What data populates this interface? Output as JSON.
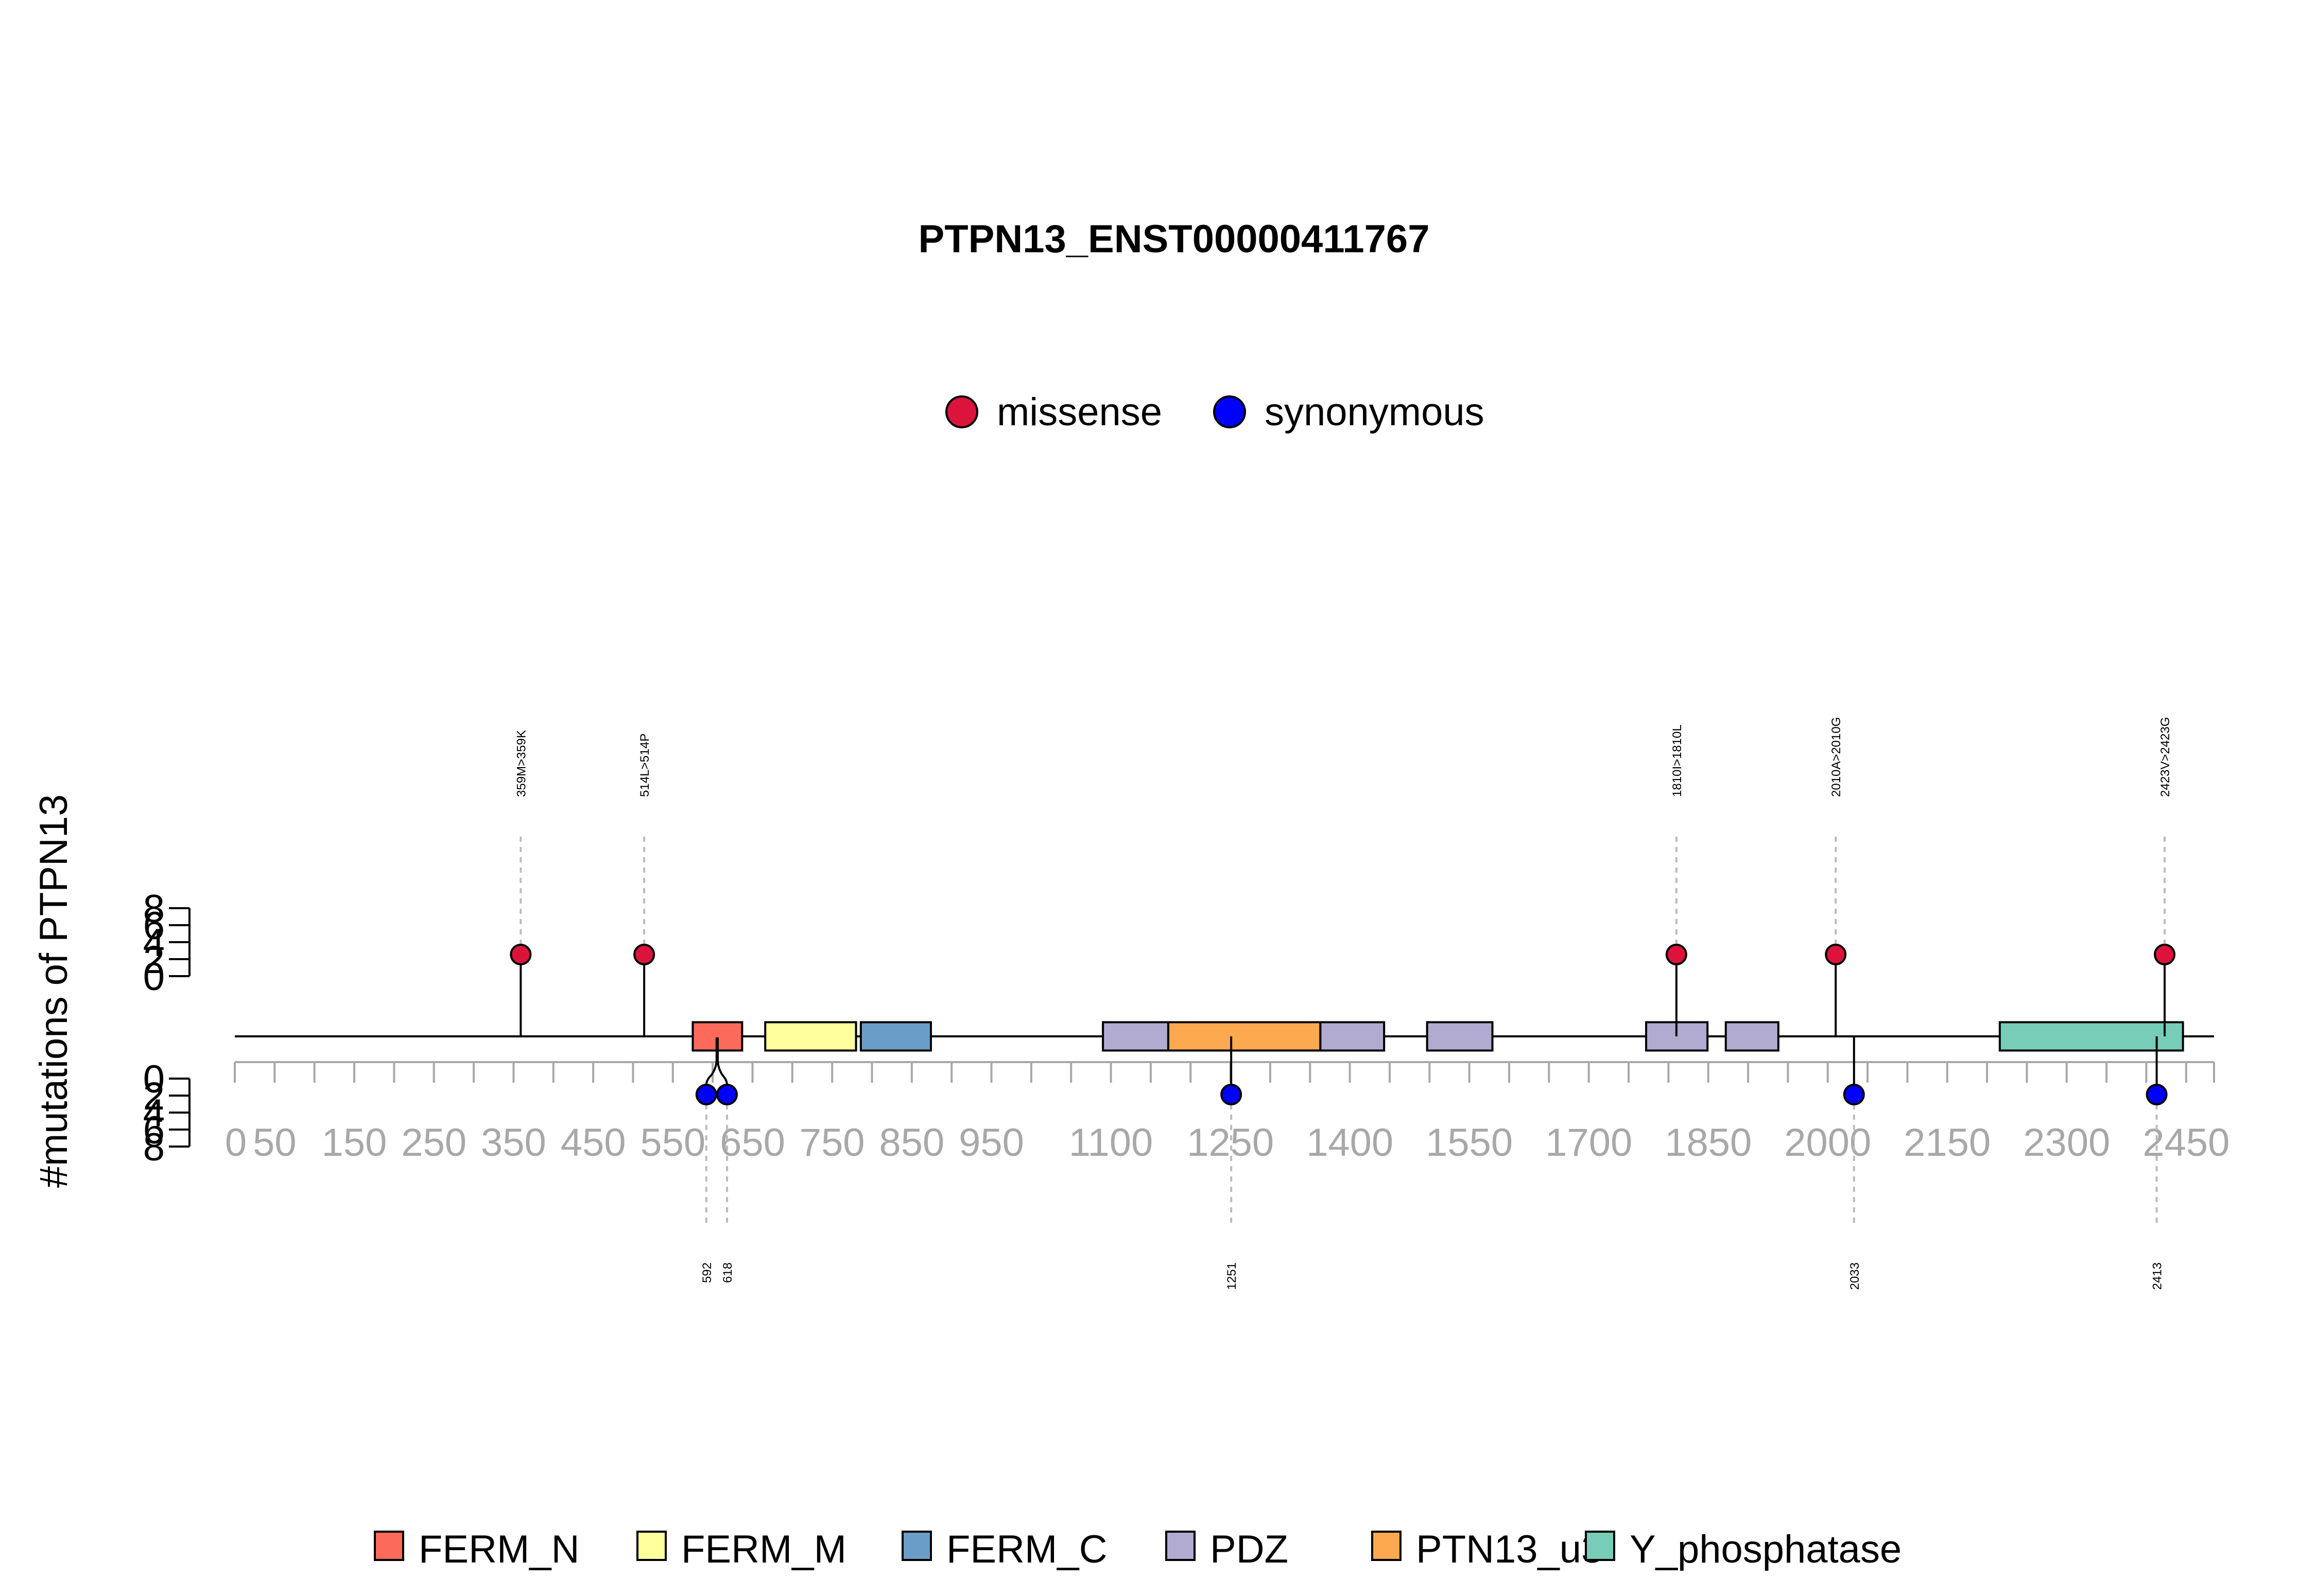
{
  "chart_data": {
    "type": "lollipop",
    "title": "PTPN13_ENST00000411767",
    "ylabel": "#mutations of PTPN13",
    "xlim": [
      0,
      2485
    ],
    "ylim_top": [
      0,
      8
    ],
    "ylim_bottom": [
      0,
      8
    ],
    "yticks": [
      "0",
      "2",
      "4",
      "6",
      "8"
    ],
    "xticks": [
      0,
      50,
      150,
      250,
      350,
      450,
      550,
      650,
      750,
      850,
      950,
      1100,
      1250,
      1400,
      1550,
      1700,
      1850,
      2000,
      2150,
      2300,
      2450
    ],
    "mutation_legend": [
      {
        "name": "missense",
        "color": "#dc143c"
      },
      {
        "name": "synonymous",
        "color": "#0000ff"
      }
    ],
    "missense": [
      {
        "label": "359M>359K",
        "position": 359,
        "count": 1
      },
      {
        "label": "514L>514P",
        "position": 514,
        "count": 1
      },
      {
        "label": "1810I>1810L",
        "position": 1810,
        "count": 1
      },
      {
        "label": "2010A>2010G",
        "position": 2010,
        "count": 1
      },
      {
        "label": "2423V>2423G",
        "position": 2423,
        "count": 1
      }
    ],
    "synonymous": [
      {
        "label": "592",
        "position": 592,
        "count": 1
      },
      {
        "label": "618",
        "position": 618,
        "count": 1
      },
      {
        "label": "1251",
        "position": 1251,
        "count": 1
      },
      {
        "label": "2033",
        "position": 2033,
        "count": 1
      },
      {
        "label": "2413",
        "position": 2413,
        "count": 1
      }
    ],
    "domains": [
      {
        "name": "FERM_N",
        "start": 575,
        "end": 637
      },
      {
        "name": "FERM_M",
        "start": 666,
        "end": 780
      },
      {
        "name": "FERM_C",
        "start": 786,
        "end": 874
      },
      {
        "name": "PDZ",
        "start": 1090,
        "end": 1172
      },
      {
        "name": "PTN13_u3",
        "start": 1172,
        "end": 1363
      },
      {
        "name": "PDZ",
        "start": 1363,
        "end": 1443
      },
      {
        "name": "PDZ",
        "start": 1497,
        "end": 1579
      },
      {
        "name": "PDZ",
        "start": 1772,
        "end": 1849
      },
      {
        "name": "PDZ",
        "start": 1872,
        "end": 1938
      },
      {
        "name": "Y_phosphatase",
        "start": 2216,
        "end": 2446
      }
    ],
    "domain_legend": [
      {
        "name": "FERM_N",
        "color": "#fb6a5a"
      },
      {
        "name": "FERM_M",
        "color": "#ffff9e"
      },
      {
        "name": "FERM_C",
        "color": "#6a9ec8"
      },
      {
        "name": "PDZ",
        "color": "#b1abd1"
      },
      {
        "name": "PTN13_u3",
        "color": "#fca94f"
      },
      {
        "name": "Y_phosphatase",
        "color": "#77cdb8"
      }
    ]
  }
}
